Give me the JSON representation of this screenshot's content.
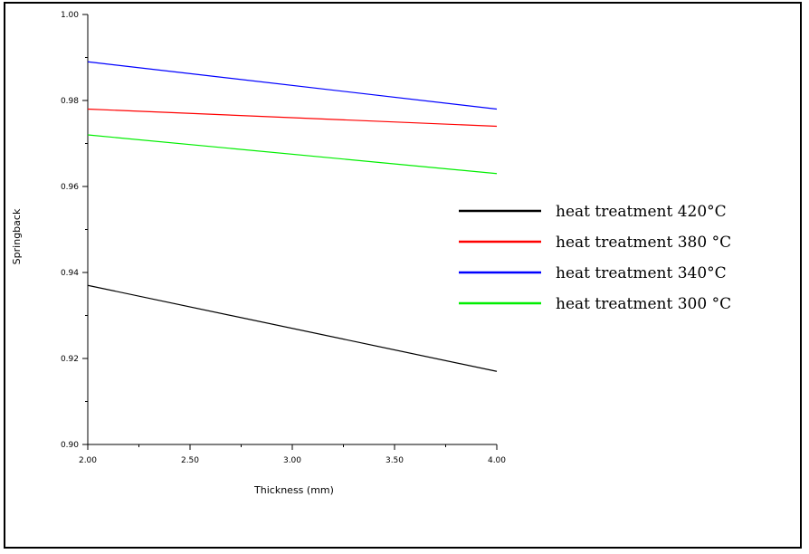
{
  "chart_data": {
    "type": "line",
    "title": "",
    "xlabel": "Thickness (mm)",
    "ylabel": "Springback",
    "xlim": [
      2.0,
      4.0
    ],
    "ylim": [
      0.9,
      1.0
    ],
    "x_ticks": [
      "2.00",
      "2.50",
      "3.00",
      "3.50",
      "4.00"
    ],
    "y_ticks": [
      "0.90",
      "0.92",
      "0.94",
      "0.96",
      "0.98",
      "1.00"
    ],
    "grid": false,
    "legend_position": "right",
    "series": [
      {
        "name": "heat treatment 420°C",
        "color": "#000000",
        "x": [
          2.0,
          4.0
        ],
        "y": [
          0.937,
          0.917
        ]
      },
      {
        "name": "heat treatment 380 °C",
        "color": "#ff0000",
        "x": [
          2.0,
          4.0
        ],
        "y": [
          0.978,
          0.974
        ]
      },
      {
        "name": "heat treatment 340°C",
        "color": "#0000ff",
        "x": [
          2.0,
          4.0
        ],
        "y": [
          0.989,
          0.978
        ]
      },
      {
        "name": "heat treatment 300 °C",
        "color": "#00ee00",
        "x": [
          2.0,
          4.0
        ],
        "y": [
          0.972,
          0.963
        ]
      }
    ]
  }
}
